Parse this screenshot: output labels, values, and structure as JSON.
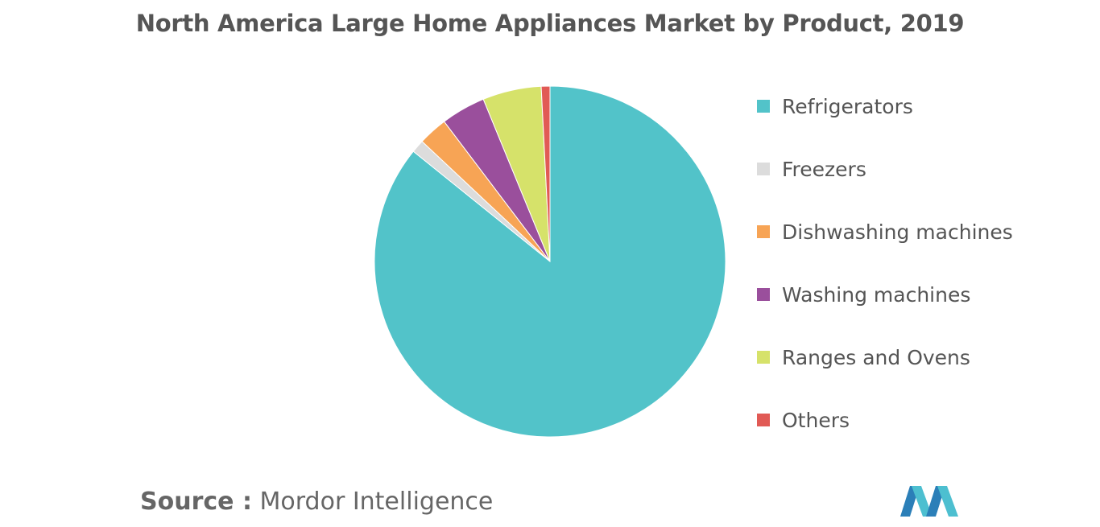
{
  "title": "North America Large Home Appliances Market by Product, 2019",
  "source": {
    "label": "Source :",
    "text": "Mordor Intelligence"
  },
  "logo_icon": "mordor-intelligence-logo",
  "chart_data": {
    "type": "pie",
    "title": "North America Large Home Appliances Market by Product, 2019",
    "legend_position": "right",
    "start_angle": "top, clockwise",
    "slices": [
      {
        "label": "Refrigerators",
        "value": 85.8,
        "color": "#52c3c9"
      },
      {
        "label": "Freezers",
        "value": 1.2,
        "color": "#dcdcdc"
      },
      {
        "label": "Dishwashing machines",
        "value": 2.7,
        "color": "#f7a455"
      },
      {
        "label": "Washing machines",
        "value": 4.1,
        "color": "#9a4f9c"
      },
      {
        "label": "Ranges and Ovens",
        "value": 5.4,
        "color": "#d6e26a"
      },
      {
        "label": "Others",
        "value": 0.8,
        "color": "#e15a55"
      }
    ]
  }
}
